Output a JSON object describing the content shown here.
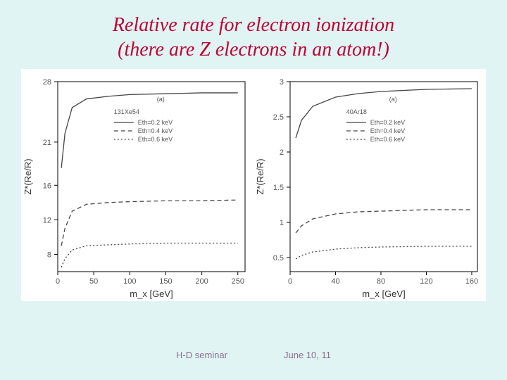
{
  "title_line1": "Relative rate for electron ionization",
  "title_line2": "(there are Z electrons in an atom!)",
  "footer_left": "H-D seminar",
  "footer_right": "June 10, 11",
  "left_chart": {
    "type": "line",
    "panel_label": "(a)",
    "isotope": "131Xe54",
    "xlabel": "m_x [GeV]",
    "ylabel": "Z*(Re/R)",
    "xlim": [
      0,
      260
    ],
    "ylim": [
      6,
      28
    ],
    "xticks": [
      0,
      50,
      100,
      150,
      200,
      250
    ],
    "yticks": [
      8,
      12,
      16,
      21,
      28
    ],
    "background_color": "#ffffff",
    "series": [
      {
        "label": "Eth=0.2 keV",
        "dash": "solid",
        "color": "#444",
        "x": [
          5,
          10,
          20,
          40,
          70,
          100,
          150,
          200,
          250
        ],
        "y": [
          18,
          22,
          25,
          26,
          26.3,
          26.5,
          26.6,
          26.7,
          26.7
        ]
      },
      {
        "label": "Eth=0.4 keV",
        "dash": "dashed",
        "color": "#444",
        "x": [
          5,
          10,
          20,
          40,
          70,
          100,
          150,
          200,
          250
        ],
        "y": [
          9,
          11,
          13,
          13.8,
          14,
          14.1,
          14.2,
          14.2,
          14.3
        ]
      },
      {
        "label": "Eth=0.6 keV",
        "dash": "dotted",
        "color": "#444",
        "x": [
          5,
          10,
          20,
          40,
          70,
          100,
          150,
          200,
          250
        ],
        "y": [
          6.5,
          7.5,
          8.5,
          9,
          9.1,
          9.2,
          9.3,
          9.3,
          9.3
        ]
      }
    ]
  },
  "right_chart": {
    "type": "line",
    "panel_label": "(a)",
    "isotope": "40Ar18",
    "xlabel": "m_x [GeV]",
    "ylabel": "Z*(Re/R)",
    "xlim": [
      0,
      165
    ],
    "ylim": [
      0.3,
      3.0
    ],
    "xticks": [
      0,
      40,
      80,
      120,
      160
    ],
    "yticks": [
      0.5,
      1.0,
      1.5,
      2.0,
      2.5,
      3.0
    ],
    "background_color": "#ffffff",
    "series": [
      {
        "label": "Eth=0.2 keV",
        "dash": "solid",
        "color": "#444",
        "x": [
          5,
          10,
          20,
          40,
          60,
          80,
          120,
          160
        ],
        "y": [
          2.2,
          2.45,
          2.65,
          2.78,
          2.83,
          2.86,
          2.89,
          2.9
        ]
      },
      {
        "label": "Eth=0.4 keV",
        "dash": "dashed",
        "color": "#444",
        "x": [
          5,
          10,
          20,
          40,
          60,
          80,
          120,
          160
        ],
        "y": [
          0.85,
          0.95,
          1.05,
          1.12,
          1.15,
          1.16,
          1.18,
          1.18
        ]
      },
      {
        "label": "Eth=0.6 keV",
        "dash": "dotted",
        "color": "#444",
        "x": [
          5,
          10,
          20,
          40,
          60,
          80,
          120,
          160
        ],
        "y": [
          0.48,
          0.53,
          0.58,
          0.62,
          0.64,
          0.65,
          0.66,
          0.66
        ]
      }
    ]
  }
}
